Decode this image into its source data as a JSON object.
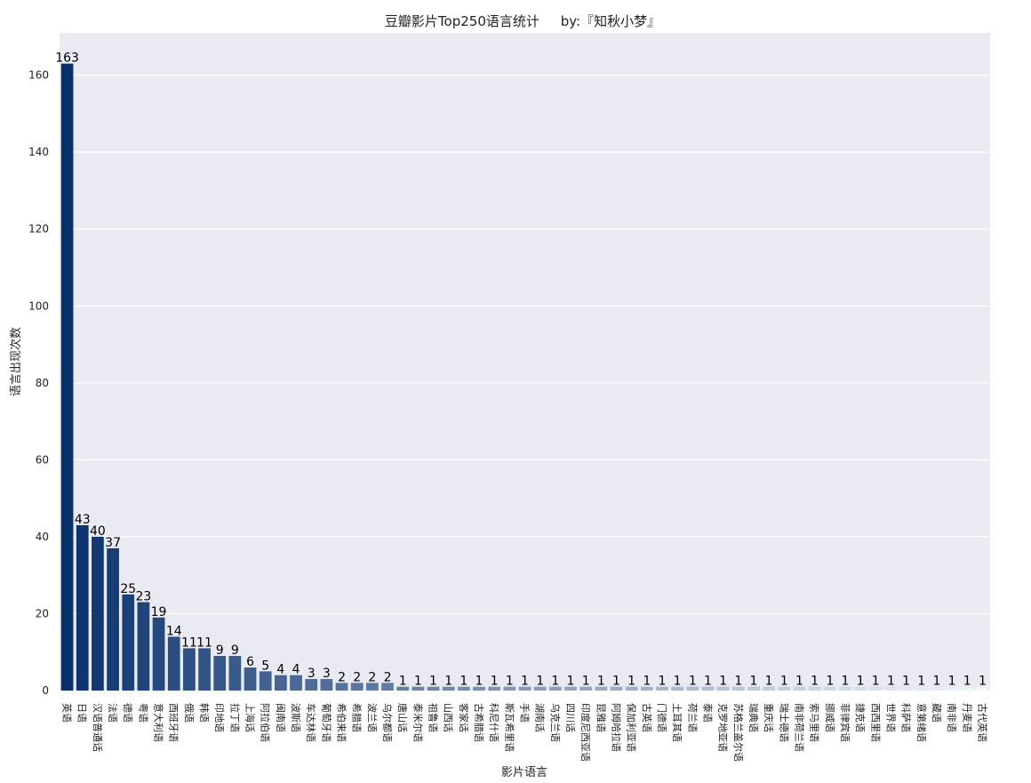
{
  "chart_data": {
    "type": "bar",
    "title": "豆瓣影片Top250语言统计     by:『知秋小梦』",
    "xlabel": "影片语言",
    "ylabel": "语言出现次数",
    "ylim": [
      0,
      171
    ],
    "yticks": [
      0,
      20,
      40,
      60,
      80,
      100,
      120,
      140,
      160
    ],
    "grid": true,
    "legend": "none",
    "colors": {
      "background": "#eaeaf2",
      "grid": "#ffffff",
      "bar_dark": "#08306b",
      "bar_light": "#f7fbff"
    },
    "categories": [
      "英语",
      "日语",
      "汉语普通话",
      "法语",
      "德语",
      "粤语",
      "意大利语",
      "西班牙语",
      "俄语",
      "韩语",
      "印地语",
      "拉丁语",
      "上海话",
      "阿拉伯语",
      "闽南语",
      "波斯语",
      "车达林语",
      "葡萄牙语",
      "希伯来语",
      "希腊语",
      "波兰语",
      "乌尔都语",
      "唐山话",
      "泰米尔语",
      "祖鲁语",
      "山西话",
      "客家话",
      "古希腊语",
      "科尼什语",
      "斯瓦希里语",
      "手语",
      "湖南话",
      "乌克兰语",
      "四川话",
      "印度尼西亚语",
      "昆雅语",
      "阿姆哈拉语",
      "保加利亚语",
      "古英语",
      "门德语",
      "土耳其语",
      "荷兰语",
      "泰语",
      "克罗地亚语",
      "苏格兰盖尔语",
      "瑞典语",
      "重庆话",
      "瑞士德语",
      "南非荷兰语",
      "索马里语",
      "挪威语",
      "菲律宾语",
      "捷克语",
      "西西里语",
      "世界语",
      "科萨语",
      "意第绪语",
      "藏语",
      "南非语",
      "丹麦语",
      "古代英语"
    ],
    "values": [
      163,
      43,
      40,
      37,
      25,
      23,
      19,
      14,
      11,
      11,
      9,
      9,
      6,
      5,
      4,
      4,
      3,
      3,
      2,
      2,
      2,
      2,
      1,
      1,
      1,
      1,
      1,
      1,
      1,
      1,
      1,
      1,
      1,
      1,
      1,
      1,
      1,
      1,
      1,
      1,
      1,
      1,
      1,
      1,
      1,
      1,
      1,
      1,
      1,
      1,
      1,
      1,
      1,
      1,
      1,
      1,
      1,
      1,
      1,
      1,
      1
    ]
  }
}
